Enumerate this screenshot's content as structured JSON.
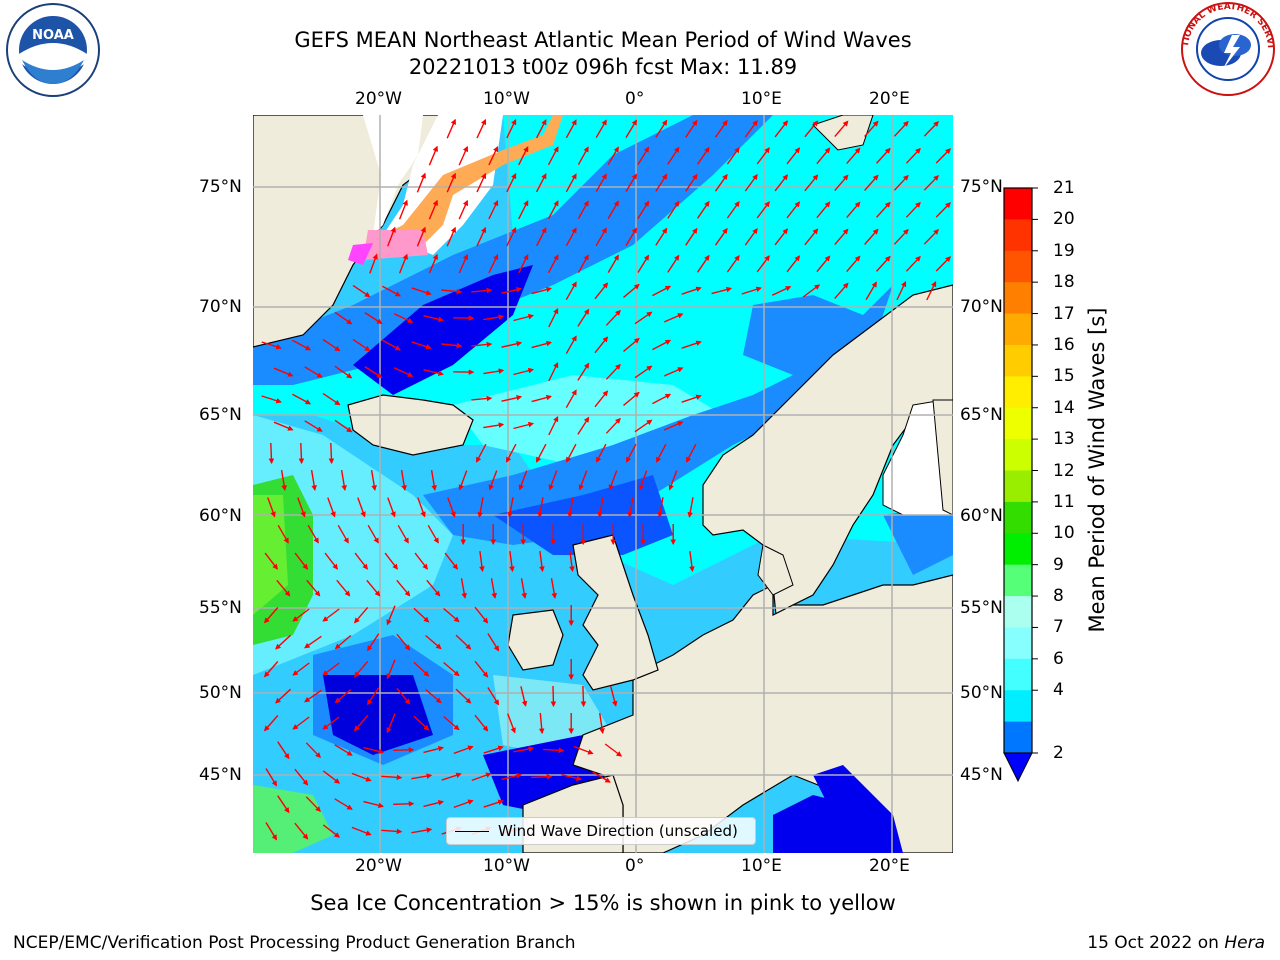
{
  "header": {
    "title_line1": "GEFS MEAN Northeast Atlantic Mean Period of Wind Waves",
    "title_line2": "20221013 t00z 096h fcst   Max: 11.89"
  },
  "logos": {
    "left": "NOAA",
    "right": "NATIONAL WEATHER SERVICE"
  },
  "map": {
    "lat_ticks_left": [
      "75°N",
      "70°N",
      "65°N",
      "60°N",
      "55°N",
      "50°N",
      "45°N"
    ],
    "lat_ticks_right": [
      "75°N",
      "70°N",
      "65°N",
      "60°N",
      "55°N",
      "50°N",
      "45°N"
    ],
    "lon_ticks_top": [
      "20°W",
      "10°W",
      "0°",
      "10°E",
      "20°E"
    ],
    "lon_ticks_bottom": [
      "20°W",
      "10°W",
      "0°",
      "10°E",
      "20°E"
    ],
    "legend_text": "Wind Wave Direction (unscaled)",
    "colors": {
      "land": "#efecdc",
      "ice_land": "#ffffff",
      "arrow": "#ff0000",
      "grid": "#b0b0b0",
      "coast": "#000000"
    }
  },
  "colorbar": {
    "label": "Mean Period of Wind Waves [s]",
    "ticks": [
      "21",
      "20",
      "19",
      "18",
      "17",
      "16",
      "15",
      "14",
      "13",
      "12",
      "11",
      "10",
      "9",
      "8",
      "7",
      "6",
      "4",
      "2"
    ],
    "colors": [
      "#ff0000",
      "#ff3300",
      "#ff5500",
      "#ff7f00",
      "#ffaa00",
      "#ffcc00",
      "#ffee00",
      "#eeff00",
      "#ccff00",
      "#99ee00",
      "#33dd00",
      "#00ee00",
      "#55ff77",
      "#aaffee",
      "#88ffff",
      "#44ffff",
      "#00eeff",
      "#0077ff"
    ],
    "extend_color": "#0000ff"
  },
  "footer": {
    "caption": "Sea Ice Concentration > 15% is shown in pink to yellow",
    "left": "NCEP/EMC/Verification Post Processing Product Generation Branch",
    "date": "15 Oct 2022 on",
    "host": "Hera"
  }
}
